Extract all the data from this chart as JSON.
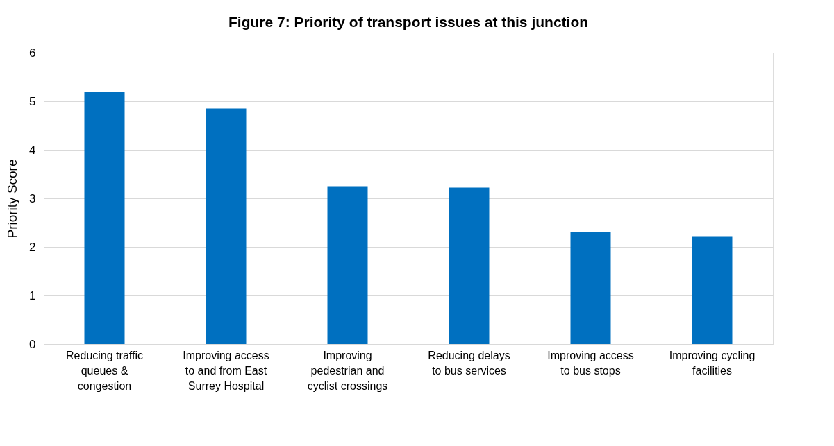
{
  "chart_data": {
    "type": "bar",
    "title": "Figure 7: Priority of transport issues at this junction",
    "ylabel": "Priority Score",
    "categories": [
      "Reducing traffic queues & congestion",
      "Improving access to and from East Surrey Hospital",
      "Improving pedestrian and cyclist crossings",
      "Reducing delays to bus services",
      "Improving access to bus stops",
      "Improving cycling facilities"
    ],
    "values": [
      5.19,
      4.85,
      3.25,
      3.22,
      2.31,
      2.22
    ],
    "color": "#0070c0",
    "ylim": [
      0,
      6
    ],
    "yticks": [
      0,
      1,
      2,
      3,
      4,
      5,
      6
    ],
    "grid": "y"
  }
}
